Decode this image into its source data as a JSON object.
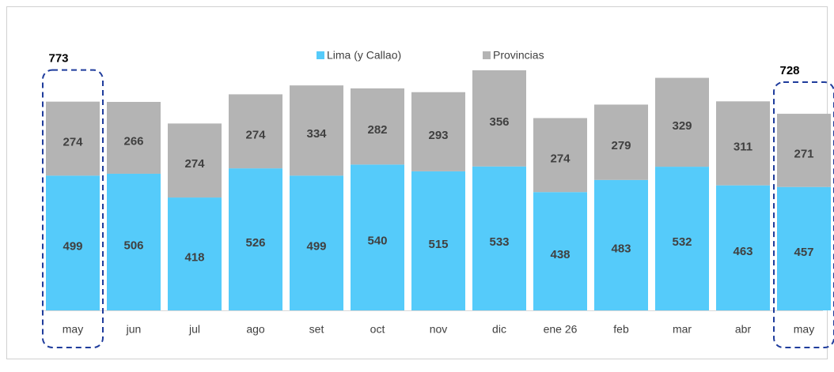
{
  "chart_data": {
    "type": "stacked_bar",
    "categories": [
      "may",
      "jun",
      "jul",
      "ago",
      "set",
      "oct",
      "nov",
      "dic",
      "ene 26",
      "feb",
      "mar",
      "abr",
      "may"
    ],
    "series": [
      {
        "name": "Lima (y Callao)",
        "color": "#55cbfa",
        "values": [
          499,
          506,
          418,
          526,
          499,
          540,
          515,
          533,
          438,
          483,
          532,
          463,
          457
        ]
      },
      {
        "name": "Provincias",
        "color": "#b4b4b4",
        "values": [
          274,
          266,
          274,
          274,
          334,
          282,
          293,
          356,
          274,
          279,
          329,
          311,
          271
        ]
      }
    ],
    "totals": [
      773,
      null,
      null,
      null,
      null,
      null,
      null,
      null,
      null,
      null,
      null,
      null,
      728
    ],
    "highlight_color": "#1f3c9c"
  }
}
